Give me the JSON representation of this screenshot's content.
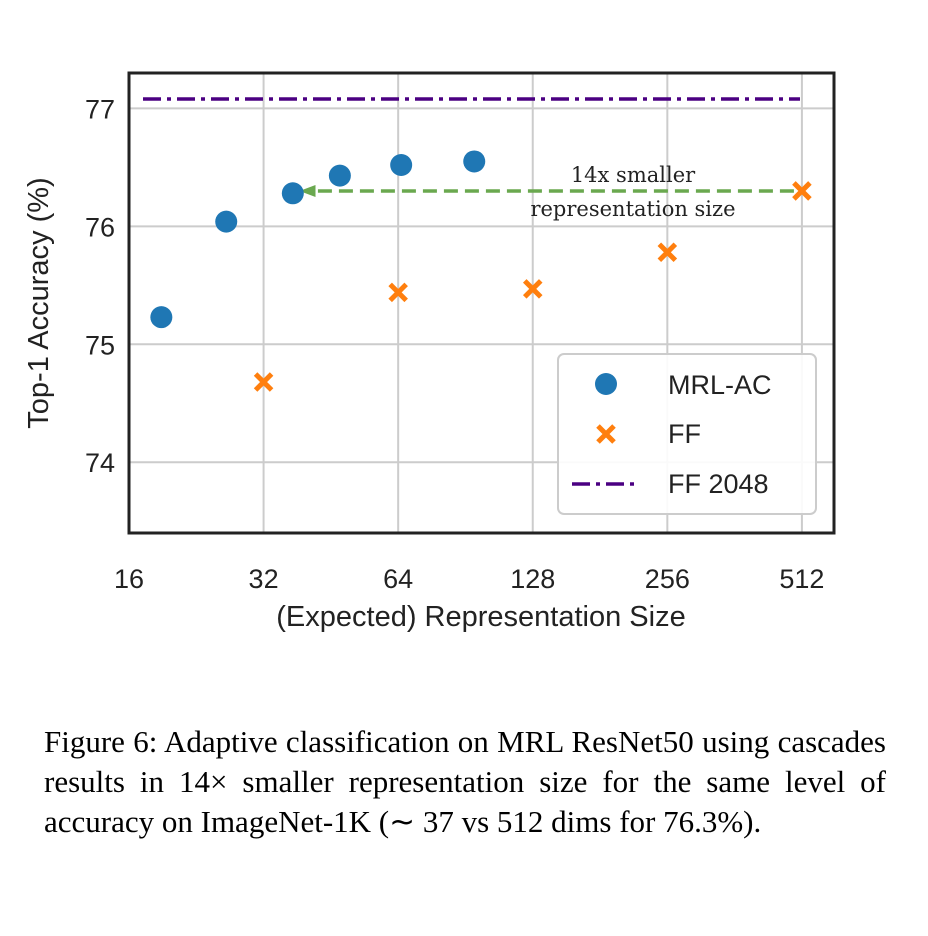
{
  "chart_data": {
    "type": "scatter",
    "xlabel": "(Expected) Representation Size",
    "ylabel": "Top-1 Accuracy (%)",
    "x_scale": "log2",
    "xlim": [
      16,
      604
    ],
    "ylim": [
      73.4,
      77.3
    ],
    "x_ticks": [
      16,
      32,
      64,
      128,
      256,
      512
    ],
    "x_tick_labels": [
      "16",
      "32",
      "64",
      "128",
      "256",
      "512"
    ],
    "y_ticks": [
      74,
      75,
      76,
      77
    ],
    "y_tick_labels": [
      "74",
      "75",
      "76",
      "77"
    ],
    "grid": true,
    "legend_position": "bottom-right",
    "series": [
      {
        "name": "MRL-AC",
        "marker": "circle",
        "color": "#1f77b4",
        "x": [
          18.9,
          26.4,
          37.2,
          47.4,
          65,
          94.7
        ],
        "y": [
          75.23,
          76.04,
          76.28,
          76.43,
          76.52,
          76.55
        ]
      },
      {
        "name": "FF",
        "marker": "x",
        "color": "#ff7f0e",
        "x": [
          32,
          64,
          128,
          256,
          512
        ],
        "y": [
          74.68,
          75.44,
          75.47,
          75.78,
          76.3
        ]
      },
      {
        "name": "FF 2048",
        "marker": "dashdot-line",
        "color": "#4b0082",
        "y": 77.08
      }
    ],
    "annotation": {
      "line1": "14x smaller",
      "line2": "representation size",
      "arrow_from": [
        512,
        76.3
      ],
      "arrow_to": [
        38.5,
        76.3
      ],
      "color": "#6aa84f"
    }
  },
  "caption": "Figure 6:  Adaptive classification on MRL ResNet50 using cascades results in 14× smaller representation size for the same level of accuracy on ImageNet-1K (∼ 37 vs 512 dims for 76.3%)."
}
